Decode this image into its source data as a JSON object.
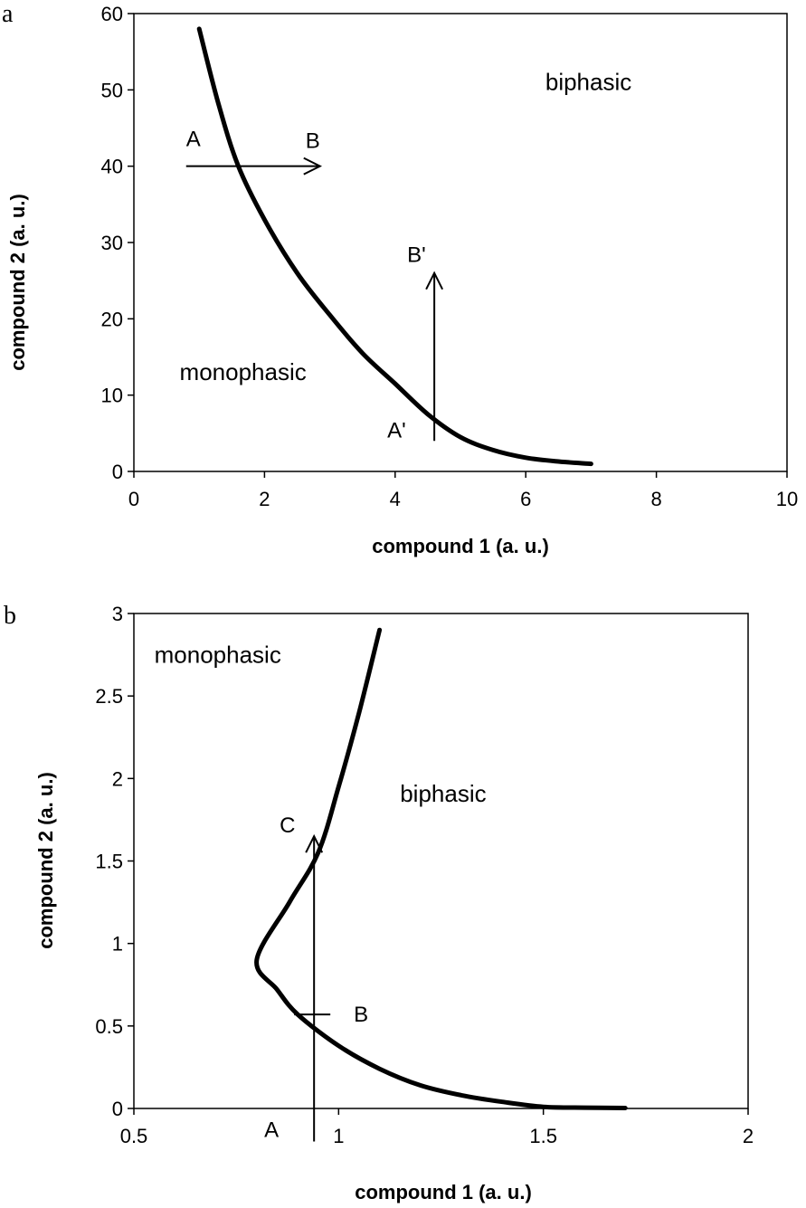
{
  "chart_data": [
    {
      "panel_label": "a",
      "type": "line",
      "xlabel": "compound 1 (a. u.)",
      "ylabel": "compound 2 (a. u.)",
      "xlim": [
        0,
        10
      ],
      "ylim": [
        0,
        60
      ],
      "xticks": [
        "0",
        "2",
        "4",
        "6",
        "8",
        "10"
      ],
      "yticks": [
        "0",
        "10",
        "20",
        "30",
        "40",
        "50",
        "60"
      ],
      "grid": false,
      "series": [
        {
          "x": [
            1.0,
            1.3,
            1.6,
            2.0,
            2.5,
            3.0,
            3.5,
            4.0,
            4.5,
            5.0,
            5.5,
            6.0,
            6.5,
            7.0
          ],
          "y": [
            58,
            48,
            40,
            33,
            26,
            20.5,
            15.5,
            11.5,
            7.5,
            4.5,
            2.8,
            1.8,
            1.3,
            1.0
          ]
        }
      ],
      "regions": [
        {
          "text": "biphasic",
          "x": 6.3,
          "y": 50
        },
        {
          "text": "monophasic",
          "x": 0.7,
          "y": 12
        }
      ],
      "arrows": [
        {
          "from": [
            0.8,
            40
          ],
          "to": [
            2.85,
            40
          ],
          "start_label": "A",
          "end_label": "B"
        },
        {
          "from": [
            4.6,
            4
          ],
          "to": [
            4.6,
            26
          ],
          "start_label": "A'",
          "end_label": "B'"
        }
      ]
    },
    {
      "panel_label": "b",
      "type": "line",
      "xlabel": "compound 1 (a. u.)",
      "ylabel": "compound 2 (a. u.)",
      "xlim": [
        0.5,
        2
      ],
      "ylim": [
        0,
        3
      ],
      "xticks": [
        "0.5",
        "1",
        "1.5",
        "2"
      ],
      "yticks": [
        "0",
        "0.5",
        "1",
        "1.5",
        "2",
        "2.5",
        "3"
      ],
      "grid": false,
      "series": [
        {
          "x": [
            1.1,
            1.05,
            1.0,
            0.95,
            0.88,
            0.8,
            0.85,
            0.9,
            1.0,
            1.1,
            1.2,
            1.3,
            1.4,
            1.5,
            1.6,
            1.7
          ],
          "y": [
            2.9,
            2.4,
            1.95,
            1.55,
            1.25,
            0.9,
            0.72,
            0.57,
            0.38,
            0.24,
            0.14,
            0.08,
            0.04,
            0.01,
            0.005,
            0.003
          ]
        }
      ],
      "regions": [
        {
          "text": "monophasic",
          "x": 0.55,
          "y": 2.7
        },
        {
          "text": "biphasic",
          "x": 1.15,
          "y": 1.86
        }
      ],
      "arrows": [
        {
          "from": [
            0.94,
            -0.2
          ],
          "to": [
            0.94,
            1.65
          ],
          "start_label": "A",
          "mid_label": "B",
          "mid_y": 0.57,
          "end_label": "C"
        }
      ]
    }
  ]
}
